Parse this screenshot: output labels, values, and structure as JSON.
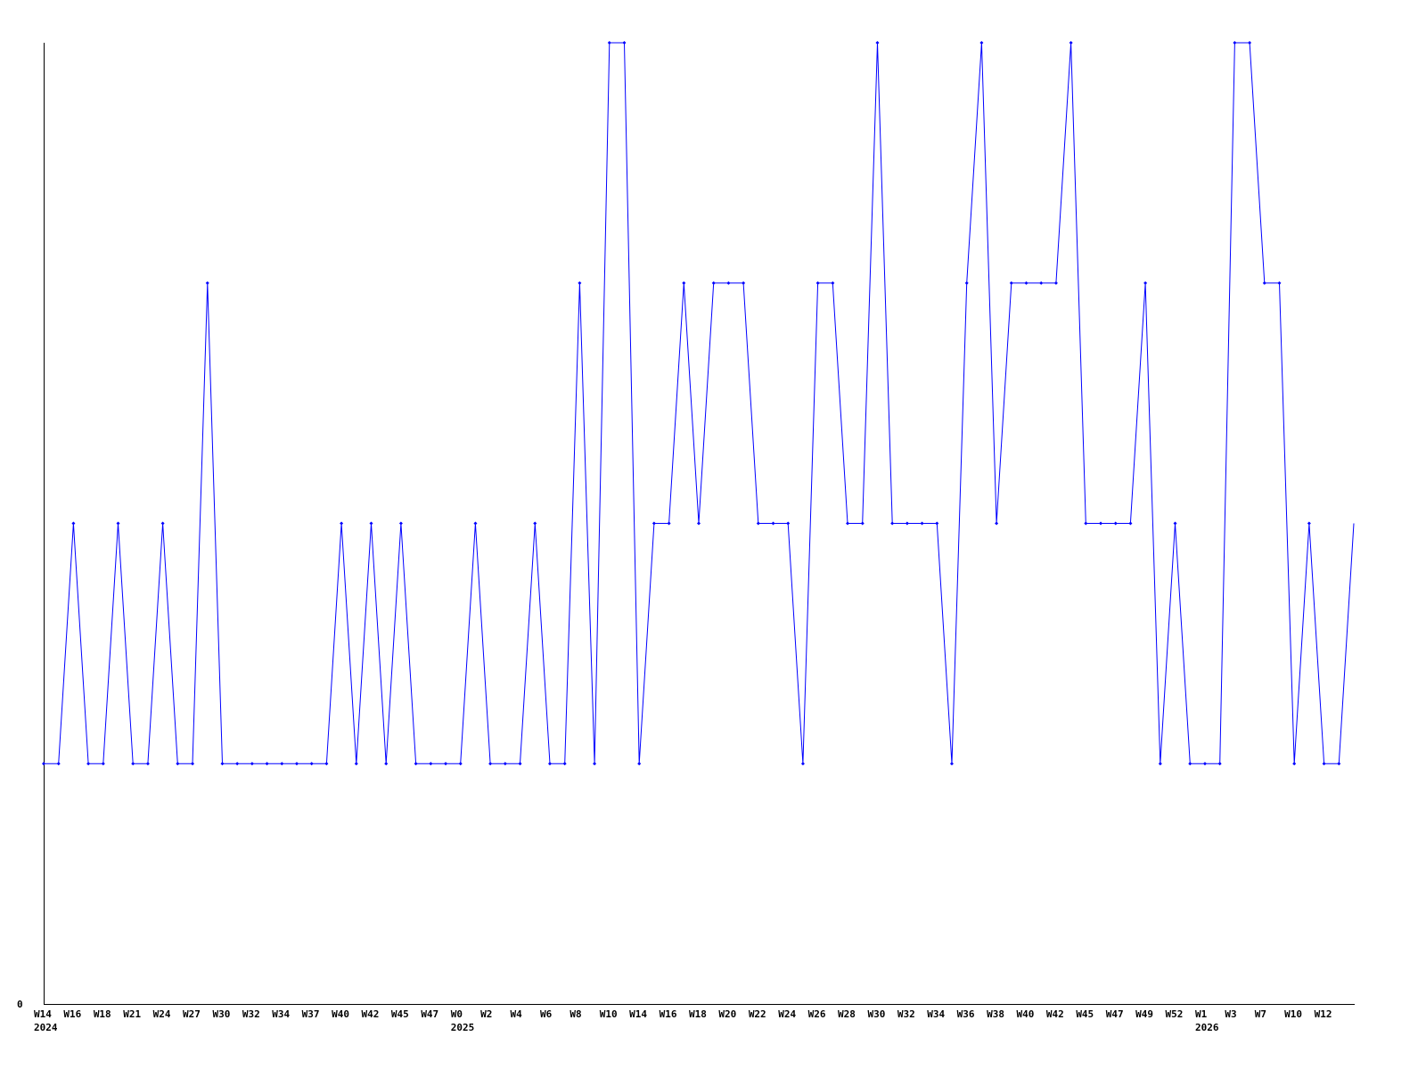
{
  "chart_data": {
    "type": "line",
    "title": "",
    "xlabel": "",
    "ylabel": "",
    "ylim": [
      0,
      4
    ],
    "y_tick_labels": [
      "0"
    ],
    "grid": false,
    "legend": "none",
    "line_color": "#0000ff",
    "x_tick_labels": [
      "W14",
      "W16",
      "W18",
      "W21",
      "W24",
      "W27",
      "W30",
      "W32",
      "W34",
      "W37",
      "W40",
      "W42",
      "W45",
      "W47",
      "W0",
      "W2",
      "W4",
      "W6",
      "W8",
      "W10",
      "W14",
      "W16",
      "W18",
      "W20",
      "W22",
      "W24",
      "W26",
      "W28",
      "W30",
      "W32",
      "W34",
      "W36",
      "W38",
      "W40",
      "W42",
      "W45",
      "W47",
      "W49",
      "W52",
      "W1",
      "W3",
      "W7",
      "W10",
      "W12"
    ],
    "year_labels": [
      {
        "label": "2024",
        "at_tick": "W14"
      },
      {
        "label": "2025",
        "at_tick": "W0"
      },
      {
        "label": "2026",
        "at_tick": "W1"
      }
    ],
    "values": [
      1,
      1,
      2,
      1,
      1,
      2,
      1,
      1,
      2,
      1,
      1,
      3,
      1,
      1,
      1,
      1,
      1,
      1,
      1,
      1,
      2,
      1,
      2,
      1,
      2,
      1,
      1,
      1,
      1,
      2,
      1,
      1,
      1,
      2,
      1,
      1,
      3,
      1,
      4,
      4,
      1,
      2,
      2,
      3,
      2,
      3,
      3,
      3,
      2,
      2,
      2,
      1,
      3,
      3,
      2,
      2,
      4,
      2,
      2,
      2,
      2,
      1,
      3,
      4,
      2,
      3,
      3,
      3,
      3,
      4,
      2,
      2,
      2,
      2,
      3,
      1,
      2,
      1,
      1,
      1,
      4,
      4,
      3,
      3,
      1,
      2,
      1,
      1,
      2
    ]
  }
}
